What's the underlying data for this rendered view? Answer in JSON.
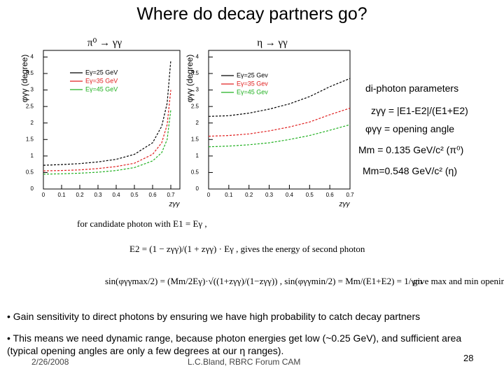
{
  "title": "Where do decay partners go?",
  "chart_data": [
    {
      "type": "line",
      "title": "π⁰ → γγ",
      "ylabel": "φγγ (degree)",
      "xlabel": "zγγ",
      "x": [
        0,
        0.1,
        0.2,
        0.3,
        0.4,
        0.5,
        0.6,
        0.65,
        0.68,
        0.7
      ],
      "xlim": [
        0,
        0.75
      ],
      "ylim": [
        0,
        4.2
      ],
      "xticks": [
        0,
        0.1,
        0.2,
        0.3,
        0.4,
        0.5,
        0.6,
        0.7
      ],
      "yticks": [
        0,
        0.5,
        1,
        1.5,
        2,
        2.5,
        3,
        3.5,
        4
      ],
      "legend": "upper-left",
      "series": [
        {
          "name": "Eγ=25 GeV",
          "color": "#000000",
          "values": [
            0.72,
            0.74,
            0.77,
            0.82,
            0.9,
            1.05,
            1.4,
            1.9,
            2.6,
            3.9
          ]
        },
        {
          "name": "Eγ=35 GeV",
          "color": "#e02020",
          "values": [
            0.55,
            0.56,
            0.58,
            0.62,
            0.68,
            0.78,
            1.05,
            1.4,
            1.95,
            3.0
          ]
        },
        {
          "name": "Eγ=45 GeV",
          "color": "#20b020",
          "values": [
            0.45,
            0.46,
            0.48,
            0.51,
            0.56,
            0.65,
            0.85,
            1.1,
            1.5,
            2.4
          ]
        }
      ]
    },
    {
      "type": "line",
      "title": "η → γγ",
      "ylabel": "φγγ (degree)",
      "xlabel": "zγγ",
      "x": [
        0,
        0.1,
        0.2,
        0.3,
        0.4,
        0.5,
        0.6,
        0.7
      ],
      "xlim": [
        0,
        0.7
      ],
      "ylim": [
        0,
        4.2
      ],
      "xticks": [
        0,
        0.1,
        0.2,
        0.3,
        0.4,
        0.5,
        0.6,
        0.7
      ],
      "yticks": [
        0,
        0.5,
        1,
        1.5,
        2,
        2.5,
        3,
        3.5,
        4
      ],
      "legend": "upper-left",
      "series": [
        {
          "name": "Eγ=25 Gev",
          "color": "#000000",
          "values": [
            2.2,
            2.22,
            2.3,
            2.42,
            2.58,
            2.8,
            3.1,
            3.35
          ]
        },
        {
          "name": "Eγ=35 Gev",
          "color": "#e02020",
          "values": [
            1.6,
            1.62,
            1.67,
            1.76,
            1.88,
            2.03,
            2.25,
            2.45
          ]
        },
        {
          "name": "Eγ=45 Gev",
          "color": "#20b020",
          "values": [
            1.28,
            1.3,
            1.34,
            1.4,
            1.5,
            1.62,
            1.78,
            1.95
          ]
        }
      ]
    }
  ],
  "side_text": [
    "di-photon parameters",
    "zγγ = |E1-E2|/(E1+E2)",
    "φγγ = opening angle",
    "Mm = 0.135 GeV/c² (π⁰)",
    "Mm=0.548 GeV/c² (η)"
  ],
  "formulas": [
    "for candidate photon with E1 = Eγ ,",
    "E2 = (1 − zγγ)/(1 + zγγ) · Eγ , gives the energy of second photon",
    "sin(φγγmax/2) = (Mm/2Eγ)·√((1+zγγ)/(1−zγγ)) ,   sin(φγγmin/2) = Mm/(E1+E2) = 1/γm",
    "give max and min opening angle"
  ],
  "bullets": [
    "• Gain sensitivity to direct photons by ensuring we have high probability to catch decay partners",
    "• This means we need dynamic range, because photon energies get low (~0.25 GeV), and sufficient area (typical opening angles are only a few degrees at our η ranges)."
  ],
  "footer": {
    "date": "2/26/2008",
    "author": "L.C.Bland, RBRC Forum CAM",
    "page": "28"
  }
}
